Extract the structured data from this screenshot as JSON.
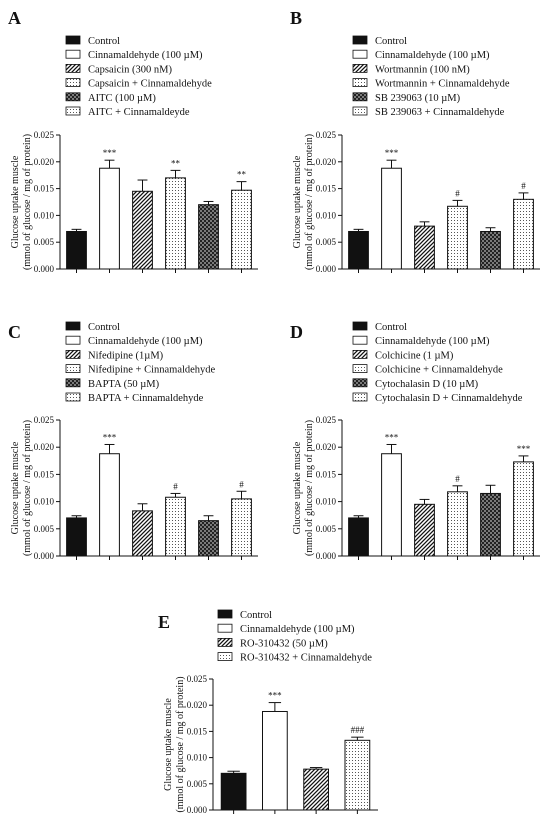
{
  "panels": [
    {
      "letter": "A",
      "legend": [
        "Control",
        "Cinnamaldehyde (100 µM)",
        "Capsaicin (300 nM)",
        "Capsaicin + Cinnamaldehyde",
        "AITC (100 µM)",
        "AITC + Cinnamaldeyde"
      ],
      "chart_data": {
        "type": "bar",
        "categories": [
          "Control",
          "Cinnamaldehyde (100 µM)",
          "Capsaicin (300 nM)",
          "Capsaicin + Cinnamaldehyde",
          "AITC (100 µM)",
          "AITC + Cinnamaldeyde"
        ],
        "values": [
          0.007,
          0.0188,
          0.0145,
          0.017,
          0.012,
          0.0147
        ],
        "errors": [
          0.0004,
          0.0015,
          0.0021,
          0.0014,
          0.0006,
          0.0016
        ],
        "significance": [
          "",
          "***",
          "",
          "**",
          "",
          "**"
        ],
        "patterns": [
          "solid",
          "white",
          "diag",
          "dots",
          "check",
          "dots"
        ],
        "ylabel": [
          "Glucose uptake muscle",
          "(mmol of glucose / mg of protein)"
        ],
        "ylim": [
          0,
          0.025
        ],
        "yticks": [
          "0.000",
          "0.005",
          "0.010",
          "0.015",
          "0.020",
          "0.025"
        ]
      }
    },
    {
      "letter": "B",
      "legend": [
        "Control",
        "Cinnamaldehyde (100 µM)",
        "Wortmannin (100 nM)",
        "Wortmannin + Cinnamaldehyde",
        "SB 239063 (10 µM)",
        "SB 239063 + Cinnamaldehyde"
      ],
      "chart_data": {
        "type": "bar",
        "categories": [
          "Control",
          "Cinnamaldehyde (100 µM)",
          "Wortmannin (100 nM)",
          "Wortmannin + Cinnamaldehyde",
          "SB 239063 (10 µM)",
          "SB 239063 + Cinnamaldehyde"
        ],
        "values": [
          0.007,
          0.0188,
          0.008,
          0.0117,
          0.007,
          0.013
        ],
        "errors": [
          0.0004,
          0.0015,
          0.0008,
          0.0011,
          0.0007,
          0.0012
        ],
        "significance": [
          "",
          "***",
          "",
          "#",
          "",
          "#"
        ],
        "patterns": [
          "solid",
          "white",
          "diag",
          "dots",
          "check",
          "dots"
        ],
        "ylabel": [
          "Glucose uptake muscle",
          "(mmol of glucose / mg of protein)"
        ],
        "ylim": [
          0,
          0.025
        ],
        "yticks": [
          "0.000",
          "0.005",
          "0.010",
          "0.015",
          "0.020",
          "0.025"
        ]
      }
    },
    {
      "letter": "C",
      "legend": [
        "Control",
        "Cinnamaldehyde (100 µM)",
        "Nifedipine (1µM)",
        "Nifedipine + Cinnamaldehyde",
        "BAPTA (50 µM)",
        "BAPTA + Cinnamaldehyde"
      ],
      "chart_data": {
        "type": "bar",
        "categories": [
          "Control",
          "Cinnamaldehyde (100 µM)",
          "Nifedipine (1µM)",
          "Nifedipine + Cinnamaldehyde",
          "BAPTA (50 µM)",
          "BAPTA + Cinnamaldehyde"
        ],
        "values": [
          0.007,
          0.0188,
          0.0083,
          0.0108,
          0.0065,
          0.0105
        ],
        "errors": [
          0.0004,
          0.0017,
          0.0013,
          0.0007,
          0.0009,
          0.0014
        ],
        "significance": [
          "",
          "***",
          "",
          "#",
          "",
          "#"
        ],
        "patterns": [
          "solid",
          "white",
          "diag",
          "dots",
          "check",
          "dots"
        ],
        "ylabel": [
          "Glucose uptake muscle",
          "(mmol of glucose / mg of protein)"
        ],
        "ylim": [
          0,
          0.025
        ],
        "yticks": [
          "0.000",
          "0.005",
          "0.010",
          "0.015",
          "0.020",
          "0.025"
        ]
      }
    },
    {
      "letter": "D",
      "legend": [
        "Control",
        "Cinnamaldehyde (100 µM)",
        "Colchicine (1 µM)",
        "Colchicine + Cinnamaldehyde",
        "Cytochalasin D (10 µM)",
        "Cytochalasin D + Cinnamaldehyde"
      ],
      "chart_data": {
        "type": "bar",
        "categories": [
          "Control",
          "Cinnamaldehyde (100 µM)",
          "Colchicine (1 µM)",
          "Colchicine + Cinnamaldehyde",
          "Cytochalasin D (10 µM)",
          "Cytochalasin D + Cinnamaldehyde"
        ],
        "values": [
          0.007,
          0.0188,
          0.0095,
          0.0118,
          0.0115,
          0.0173
        ],
        "errors": [
          0.0004,
          0.0017,
          0.0009,
          0.0011,
          0.0015,
          0.0011
        ],
        "significance": [
          "",
          "***",
          "",
          "#",
          "",
          "***"
        ],
        "patterns": [
          "solid",
          "white",
          "diag",
          "dots",
          "check",
          "dots"
        ],
        "ylabel": [
          "Glucose uptake muscle",
          "(mmol of glucose / mg of protein)"
        ],
        "ylim": [
          0,
          0.025
        ],
        "yticks": [
          "0.000",
          "0.005",
          "0.010",
          "0.015",
          "0.020",
          "0.025"
        ]
      }
    },
    {
      "letter": "E",
      "legend": [
        "Control",
        "Cinnamaldehyde (100 µM)",
        "RO-310432 (50 µM)",
        "RO-310432 + Cinnamaldehyde"
      ],
      "chart_data": {
        "type": "bar",
        "categories": [
          "Control",
          "Cinnamaldehyde (100 µM)",
          "RO-310432 (50 µM)",
          "RO-310432 + Cinnamaldehyde"
        ],
        "values": [
          0.007,
          0.0188,
          0.0078,
          0.0133
        ],
        "errors": [
          0.0004,
          0.0017,
          0.0003,
          0.0006
        ],
        "significance": [
          "",
          "***",
          "",
          "###"
        ],
        "patterns": [
          "solid",
          "white",
          "diag",
          "dots"
        ],
        "ylabel": [
          "Glucose uptake muscle",
          "(mmol of glucose / mg of protein)"
        ],
        "ylim": [
          0,
          0.025
        ],
        "yticks": [
          "0.000",
          "0.005",
          "0.010",
          "0.015",
          "0.020",
          "0.025"
        ]
      }
    }
  ]
}
